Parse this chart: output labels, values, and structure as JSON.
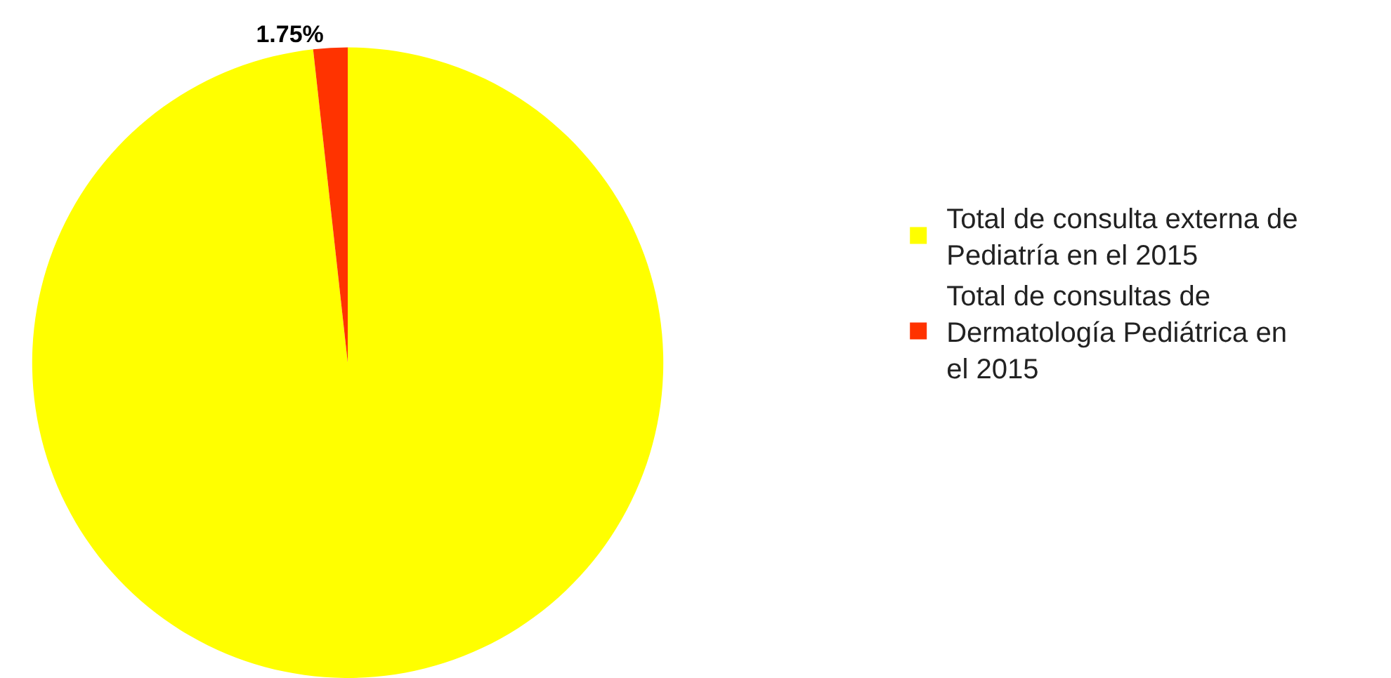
{
  "chart_data": {
    "type": "pie",
    "categories": [
      "Total de consulta externa de Pediatría en el 2015",
      "Total de consultas de Dermatología Pediátrica en el 2015"
    ],
    "values": [
      98.25,
      1.75
    ],
    "colors": [
      "#ffff00",
      "#ff3300"
    ],
    "value_labels": [
      null,
      "1.75%"
    ],
    "legend": "right"
  }
}
